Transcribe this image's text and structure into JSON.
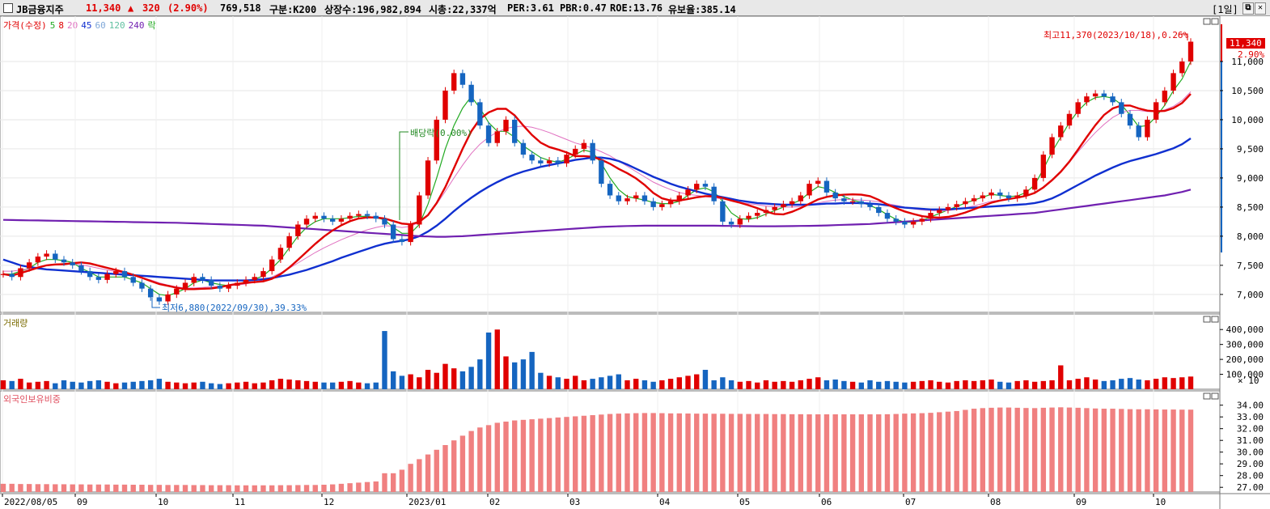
{
  "header": {
    "name": "JB금융지주",
    "price": "11,340",
    "change_arrow": "▲",
    "change": "320",
    "change_pct": "(2.90%)",
    "volume": "769,518",
    "market": "구분:K200",
    "shares": "상장수:196,982,894",
    "marketcap": "시총:22,337억",
    "per": "PER:3.61",
    "pbr": "PBR:0.47",
    "roe": "ROE:13.76",
    "reserve": "유보율:385.14",
    "period_btn": "[1일]",
    "restore_btn": "⧉",
    "close_btn": "✕"
  },
  "price_legend": {
    "title": "가격(수정)",
    "ma5": "5",
    "ma8": "8",
    "ma20": "20",
    "ma45": "45",
    "ma60": "60",
    "ma120": "120",
    "ma240": "240",
    "drop": "락"
  },
  "volume_legend": {
    "title": "거래량"
  },
  "foreign_legend": {
    "title": "외국인보유비중"
  },
  "annotations": {
    "high": "최고11,370(2023/10/18),0.26%",
    "low": "최저6,880(2022/09/30),39.33%",
    "dividend": "배당락(0.00%)",
    "last_price": "11,340",
    "last_pct": "2.90%"
  },
  "colors": {
    "up": "#e00000",
    "down": "#1565c0",
    "ma5": "#22aa22",
    "ma8": "#e00000",
    "ma20": "#e070c0",
    "ma45": "#1030d0",
    "ma60": "#80a8d8",
    "ma120": "#60c0a0",
    "ma240": "#7020b0",
    "foreign": "#f08080"
  },
  "chart_data": [
    {
      "type": "line",
      "title": "가격(수정)",
      "y_axis_ticks": [
        "11,000",
        "10,500",
        "10,000",
        "9,500",
        "9,000",
        "8,500",
        "8,000",
        "7,500",
        "7,000"
      ],
      "ylim": [
        6720,
        11750
      ],
      "x_axis_ticks": [
        "2022/08/05",
        "09",
        "10",
        "11",
        "12",
        "2023/01",
        "02",
        "03",
        "04",
        "05",
        "06",
        "07",
        "08",
        "09",
        "10"
      ],
      "series": [
        {
          "name": "가격(수정)",
          "values": [
            7350,
            7300,
            7450,
            7550,
            7650,
            7700,
            7600,
            7550,
            7500,
            7400,
            7300,
            7250,
            7350,
            7400,
            7300,
            7200,
            7100,
            6950,
            6880,
            7000,
            7100,
            7200,
            7300,
            7250,
            7150,
            7100,
            7150,
            7200,
            7250,
            7300,
            7400,
            7600,
            7800,
            8000,
            8200,
            8300,
            8350,
            8300,
            8250,
            8300,
            8350,
            8380,
            8350,
            8300,
            8200,
            7950,
            7900,
            8200,
            8700,
            9300,
            10000,
            10500,
            10800,
            10600,
            10300,
            9900,
            9600,
            9800,
            10000,
            9600,
            9400,
            9300,
            9250,
            9300,
            9250,
            9400,
            9500,
            9600,
            9300,
            8900,
            8700,
            8600,
            8650,
            8700,
            8600,
            8500,
            8550,
            8600,
            8700,
            8800,
            8900,
            8850,
            8600,
            8250,
            8200,
            8300,
            8350,
            8400,
            8450,
            8500,
            8550,
            8600,
            8700,
            8900,
            8950,
            8750,
            8650,
            8600,
            8600,
            8550,
            8500,
            8400,
            8300,
            8250,
            8200,
            8250,
            8300,
            8400,
            8450,
            8500,
            8550,
            8600,
            8650,
            8700,
            8750,
            8700,
            8650,
            8700,
            8800,
            9000,
            9400,
            9700,
            9900,
            10100,
            10300,
            10400,
            10450,
            10400,
            10300,
            10100,
            9900,
            9700,
            10000,
            10300,
            10500,
            10800,
            11000,
            11340
          ]
        },
        {
          "name": "5",
          "values": [
            7350,
            7350,
            7400,
            7450,
            7550,
            7600,
            7600,
            7580,
            7550,
            7450,
            7380,
            7300,
            7300,
            7300,
            7300,
            7250,
            7200,
            7100,
            7000,
            6980,
            7030,
            7100,
            7200,
            7250,
            7200,
            7170,
            7150,
            7170,
            7220,
            7260,
            7320,
            7450,
            7600,
            7800,
            8000,
            8150,
            8250,
            8300,
            8300,
            8300,
            8320,
            8340,
            8340,
            8320,
            8280,
            8150,
            8050,
            8050,
            8200,
            8550,
            9000,
            9500,
            9900,
            10200,
            10400,
            10200,
            9950,
            9800,
            9800,
            9700,
            9550,
            9450,
            9350,
            9300,
            9270,
            9320,
            9400,
            9480,
            9440,
            9250,
            9000,
            8800,
            8680,
            8650,
            8620,
            8580,
            8560,
            8560,
            8600,
            8700,
            8800,
            8830,
            8760,
            8600,
            8400,
            8300,
            8290,
            8320,
            8380,
            8440,
            8500,
            8560,
            8620,
            8750,
            8850,
            8820,
            8750,
            8680,
            8620,
            8580,
            8530,
            8460,
            8370,
            8290,
            8240,
            8240,
            8270,
            8330,
            8390,
            8450,
            8510,
            8570,
            8620,
            8670,
            8720,
            8700,
            8680,
            8690,
            8750,
            8880,
            9150,
            9450,
            9700,
            9950,
            10150,
            10300,
            10380,
            10400,
            10370,
            10260,
            10080,
            9880,
            9900,
            10050,
            10250,
            10500,
            10700,
            11000
          ]
        },
        {
          "name": "20",
          "values": [
            7400,
            7400,
            7420,
            7440,
            7470,
            7500,
            7520,
            7530,
            7530,
            7510,
            7480,
            7450,
            7420,
            7390,
            7360,
            7330,
            7290,
            7250,
            7200,
            7160,
            7130,
            7110,
            7110,
            7120,
            7130,
            7140,
            7150,
            7160,
            7180,
            7210,
            7250,
            7300,
            7370,
            7450,
            7540,
            7630,
            7720,
            7800,
            7870,
            7940,
            8000,
            8060,
            8110,
            8150,
            8180,
            8170,
            8150,
            8170,
            8240,
            8370,
            8550,
            8770,
            9000,
            9220,
            9420,
            9580,
            9700,
            9790,
            9850,
            9880,
            9890,
            9870,
            9830,
            9780,
            9720,
            9660,
            9600,
            9560,
            9510,
            9450,
            9380,
            9290,
            9200,
            9110,
            9020,
            8930,
            8860,
            8800,
            8750,
            8720,
            8700,
            8680,
            8660,
            8640,
            8610,
            8580,
            8560,
            8540,
            8520,
            8510,
            8500,
            8500,
            8510,
            8540,
            8570,
            8600,
            8620,
            8630,
            8630,
            8620,
            8610,
            8590,
            8560,
            8530,
            8500,
            8470,
            8450,
            8440,
            8430,
            8440,
            8460,
            8490,
            8520,
            8560,
            8600,
            8620,
            8640,
            8660,
            8690,
            8740,
            8830,
            8950,
            9100,
            9270,
            9450,
            9620,
            9780,
            9920,
            10040,
            10120,
            10160,
            10160,
            10140,
            10140,
            10170,
            10230,
            10330,
            10480
          ]
        },
        {
          "name": "45",
          "values": [
            7600,
            7550,
            7500,
            7470,
            7450,
            7430,
            7420,
            7410,
            7400,
            7390,
            7380,
            7370,
            7360,
            7350,
            7340,
            7330,
            7320,
            7310,
            7300,
            7290,
            7280,
            7270,
            7260,
            7250,
            7240,
            7240,
            7240,
            7240,
            7240,
            7250,
            7260,
            7280,
            7310,
            7340,
            7380,
            7420,
            7470,
            7520,
            7570,
            7630,
            7680,
            7730,
            7780,
            7830,
            7870,
            7900,
            7920,
            7950,
            8000,
            8080,
            8180,
            8300,
            8430,
            8550,
            8660,
            8760,
            8850,
            8930,
            9000,
            9060,
            9110,
            9150,
            9190,
            9220,
            9250,
            9280,
            9310,
            9330,
            9350,
            9350,
            9330,
            9290,
            9230,
            9160,
            9090,
            9020,
            8960,
            8900,
            8850,
            8810,
            8770,
            8730,
            8700,
            8670,
            8640,
            8610,
            8590,
            8570,
            8560,
            8550,
            8540,
            8540,
            8540,
            8540,
            8550,
            8560,
            8560,
            8570,
            8570,
            8570,
            8560,
            8550,
            8530,
            8510,
            8490,
            8480,
            8470,
            8460,
            8460,
            8460,
            8470,
            8480,
            8490,
            8500,
            8510,
            8520,
            8530,
            8540,
            8550,
            8570,
            8600,
            8650,
            8720,
            8800,
            8880,
            8960,
            9040,
            9110,
            9180,
            9240,
            9290,
            9330,
            9370,
            9410,
            9460,
            9510,
            9580,
            9680
          ]
        },
        {
          "name": "240",
          "values": [
            8280,
            8278,
            8275,
            8272,
            8270,
            8268,
            8265,
            8262,
            8260,
            8257,
            8255,
            8252,
            8250,
            8247,
            8245,
            8242,
            8240,
            8237,
            8235,
            8232,
            8230,
            8225,
            8220,
            8215,
            8210,
            8205,
            8200,
            8195,
            8190,
            8185,
            8180,
            8170,
            8160,
            8150,
            8140,
            8130,
            8120,
            8110,
            8100,
            8090,
            8080,
            8070,
            8060,
            8050,
            8040,
            8030,
            8020,
            8010,
            8000,
            7995,
            7990,
            7990,
            7995,
            8000,
            8010,
            8020,
            8030,
            8040,
            8050,
            8060,
            8070,
            8080,
            8090,
            8100,
            8110,
            8120,
            8130,
            8140,
            8150,
            8160,
            8165,
            8170,
            8175,
            8178,
            8180,
            8180,
            8180,
            8180,
            8180,
            8180,
            8180,
            8180,
            8180,
            8178,
            8176,
            8174,
            8172,
            8170,
            8170,
            8170,
            8172,
            8174,
            8176,
            8178,
            8180,
            8185,
            8190,
            8195,
            8200,
            8205,
            8210,
            8220,
            8230,
            8240,
            8250,
            8260,
            8270,
            8280,
            8290,
            8300,
            8310,
            8320,
            8330,
            8340,
            8350,
            8360,
            8370,
            8380,
            8390,
            8400,
            8420,
            8440,
            8460,
            8480,
            8500,
            8520,
            8540,
            8560,
            8580,
            8600,
            8620,
            8640,
            8660,
            8680,
            8700,
            8730,
            8760,
            8800
          ]
        }
      ]
    },
    {
      "type": "bar",
      "title": "거래량",
      "y_axis_ticks": [
        "400,000",
        "300,000",
        "200,000",
        "100,000"
      ],
      "unit_label": "× 10",
      "ylim": [
        0,
        450000
      ],
      "values": [
        60000,
        55000,
        70000,
        45000,
        50000,
        55000,
        40000,
        60000,
        50000,
        45000,
        55000,
        60000,
        50000,
        40000,
        45000,
        50000,
        55000,
        60000,
        70000,
        50000,
        45000,
        40000,
        45000,
        50000,
        40000,
        35000,
        40000,
        45000,
        50000,
        40000,
        45000,
        60000,
        70000,
        65000,
        60000,
        55000,
        50000,
        45000,
        45000,
        50000,
        55000,
        45000,
        40000,
        45000,
        390000,
        120000,
        90000,
        100000,
        80000,
        130000,
        110000,
        170000,
        140000,
        120000,
        150000,
        200000,
        380000,
        400000,
        220000,
        180000,
        200000,
        250000,
        110000,
        90000,
        80000,
        70000,
        90000,
        60000,
        70000,
        80000,
        90000,
        100000,
        60000,
        70000,
        60000,
        50000,
        60000,
        70000,
        80000,
        90000,
        100000,
        130000,
        60000,
        80000,
        60000,
        50000,
        55000,
        45000,
        60000,
        50000,
        55000,
        50000,
        60000,
        70000,
        80000,
        60000,
        65000,
        55000,
        50000,
        45000,
        60000,
        50000,
        55000,
        50000,
        45000,
        50000,
        55000,
        60000,
        50000,
        45000,
        55000,
        60000,
        55000,
        60000,
        65000,
        50000,
        45000,
        55000,
        60000,
        50000,
        55000,
        60000,
        160000,
        60000,
        70000,
        80000,
        65000,
        55000,
        60000,
        70000,
        75000,
        65000,
        60000,
        70000,
        80000,
        75000,
        80000,
        85000
      ]
    },
    {
      "type": "bar",
      "title": "외국인보유비중",
      "y_axis_ticks": [
        "34.00",
        "33.00",
        "32.00",
        "31.00",
        "30.00",
        "29.00",
        "28.00",
        "27.00"
      ],
      "ylim": [
        26.6,
        34.6
      ],
      "values": [
        27.3,
        27.3,
        27.28,
        27.28,
        27.27,
        27.27,
        27.26,
        27.26,
        27.25,
        27.25,
        27.24,
        27.24,
        27.24,
        27.23,
        27.23,
        27.22,
        27.22,
        27.21,
        27.21,
        27.2,
        27.2,
        27.2,
        27.19,
        27.19,
        27.18,
        27.18,
        27.18,
        27.17,
        27.17,
        27.17,
        27.17,
        27.17,
        27.18,
        27.18,
        27.19,
        27.2,
        27.2,
        27.22,
        27.25,
        27.3,
        27.35,
        27.4,
        27.45,
        27.5,
        28.2,
        28.2,
        28.5,
        29.0,
        29.4,
        29.8,
        30.2,
        30.6,
        31.0,
        31.4,
        31.8,
        32.1,
        32.3,
        32.5,
        32.6,
        32.7,
        32.75,
        32.8,
        32.85,
        32.9,
        32.95,
        33.0,
        33.05,
        33.1,
        33.15,
        33.2,
        33.25,
        33.28,
        33.3,
        33.32,
        33.33,
        33.33,
        33.32,
        33.3,
        33.3,
        33.29,
        33.28,
        33.28,
        33.27,
        33.27,
        33.26,
        33.26,
        33.25,
        33.25,
        33.25,
        33.24,
        33.24,
        33.23,
        33.23,
        33.22,
        33.22,
        33.22,
        33.22,
        33.22,
        33.22,
        33.22,
        33.22,
        33.22,
        33.23,
        33.25,
        33.28,
        33.3,
        33.32,
        33.35,
        33.4,
        33.45,
        33.5,
        33.6,
        33.7,
        33.75,
        33.78,
        33.8,
        33.8,
        33.78,
        33.76,
        33.75,
        33.78,
        33.8,
        33.82,
        33.8,
        33.78,
        33.75,
        33.72,
        33.7,
        33.7,
        33.68,
        33.66,
        33.65,
        33.65,
        33.64,
        33.63,
        33.63,
        33.62,
        33.62
      ]
    }
  ]
}
